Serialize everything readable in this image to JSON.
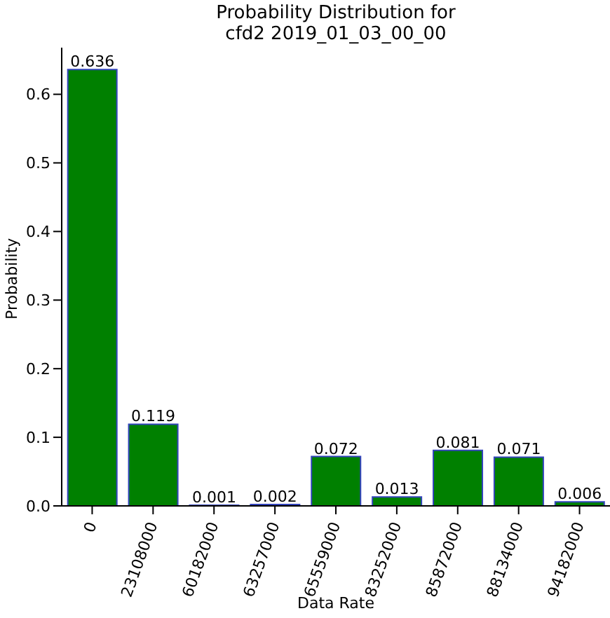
{
  "chart_data": {
    "type": "bar",
    "title": "Probability Distribution for\ncfd2 2019_01_03_00_00",
    "xlabel": "Data Rate",
    "ylabel": "Probability",
    "categories": [
      "0",
      "23108000",
      "60182000",
      "63257000",
      "65559000",
      "83252000",
      "85872000",
      "88134000",
      "94182000"
    ],
    "values": [
      0.636,
      0.119,
      0.001,
      0.002,
      0.072,
      0.013,
      0.081,
      0.071,
      0.006
    ],
    "color": "#008000",
    "data_labels": true,
    "ylim": [
      0,
      0.668
    ],
    "yticks": [
      {
        "value": 0,
        "label": "0.0"
      },
      {
        "value": 0.1,
        "label": "0.1"
      },
      {
        "value": 0.2,
        "label": "0.2"
      },
      {
        "value": 0.3,
        "label": "0.3"
      },
      {
        "value": 0.4,
        "label": "0.4"
      },
      {
        "value": 0.5,
        "label": "0.5"
      },
      {
        "value": 0.6,
        "label": "0.6"
      }
    ],
    "grid": false,
    "legend": false
  }
}
